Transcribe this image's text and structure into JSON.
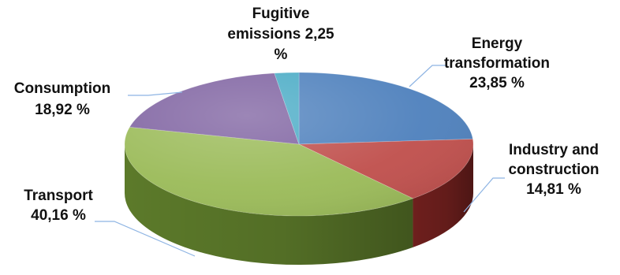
{
  "chart_data": {
    "type": "pie",
    "style": "3d",
    "title": "",
    "start_position": "12-o-clock",
    "direction": "clockwise",
    "legend": "none",
    "slices": [
      {
        "label_lines": [
          "Energy",
          "transformation",
          "23,85 %"
        ],
        "value": 23.85,
        "color": "#4f81bd",
        "side_color": "#2f4f77"
      },
      {
        "label_lines": [
          "Industry and",
          "construction",
          "14,81 %"
        ],
        "value": 14.81,
        "color": "#c0504d",
        "side_color": "#6e1f1d"
      },
      {
        "label_lines": [
          "Transport",
          "40,16 %"
        ],
        "value": 40.16,
        "color": "#9bbb59",
        "side_color": "#5c7a2a"
      },
      {
        "label_lines": [
          "Consumption",
          "18,92 %"
        ],
        "value": 18.92,
        "color": "#8064a2",
        "side_color": "#4b3563"
      },
      {
        "label_lines": [
          "Fugitive",
          "emissions 2,25",
          "%"
        ],
        "value": 2.25,
        "color": "#4bacc6",
        "side_color": "#2b6f82"
      }
    ]
  }
}
